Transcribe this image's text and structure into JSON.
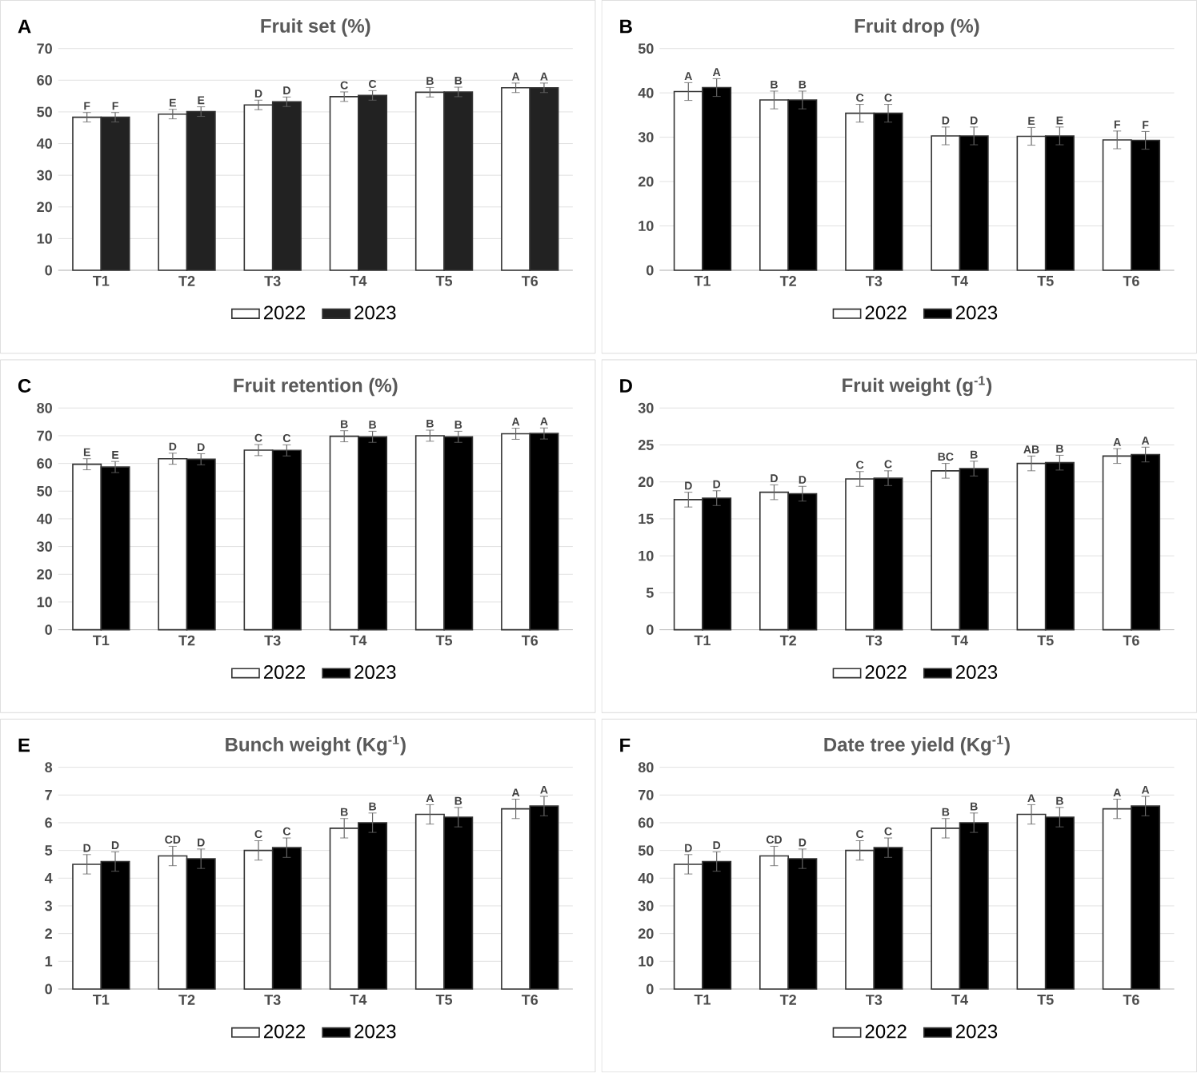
{
  "chart_data": [
    {
      "type": "bar",
      "title": "Fruit set (%)",
      "annotations": [
        "A"
      ],
      "categories": [
        "T1",
        "T2",
        "T3",
        "T4",
        "T5",
        "T6"
      ],
      "ylim": [
        0,
        70
      ],
      "yticks": [
        0,
        10,
        20,
        30,
        40,
        50,
        60,
        70
      ],
      "grid": "y",
      "legend": "bottom",
      "series": [
        {
          "name": "2022",
          "color": "#ffffff",
          "values": [
            48.3,
            49.3,
            52.2,
            54.8,
            56.2,
            57.6
          ],
          "errors": [
            1.5,
            1.5,
            1.5,
            1.5,
            1.5,
            1.5
          ],
          "value_labels": [
            "F",
            "E",
            "D",
            "C",
            "B",
            "A"
          ]
        },
        {
          "name": "2023",
          "color": "#222222",
          "values": [
            48.3,
            50.1,
            53.2,
            55.2,
            56.3,
            57.6
          ],
          "errors": [
            1.5,
            1.5,
            1.5,
            1.5,
            1.5,
            1.5
          ],
          "value_labels": [
            "F",
            "E",
            "D",
            "C",
            "B",
            "A"
          ]
        }
      ]
    },
    {
      "type": "bar",
      "title": "Fruit drop (%)",
      "annotations": [
        "B"
      ],
      "categories": [
        "T1",
        "T2",
        "T3",
        "T4",
        "T5",
        "T6"
      ],
      "ylim": [
        0,
        50
      ],
      "yticks": [
        0,
        10,
        20,
        30,
        40,
        50
      ],
      "grid": "y",
      "legend": "bottom",
      "series": [
        {
          "name": "2022",
          "color": "#ffffff",
          "values": [
            40.3,
            38.4,
            35.4,
            30.3,
            30.2,
            29.4
          ],
          "errors": [
            2,
            2,
            2,
            2,
            2,
            2
          ],
          "value_labels": [
            "A",
            "B",
            "C",
            "D",
            "E",
            "F"
          ]
        },
        {
          "name": "2023",
          "color": "#000000",
          "values": [
            41.2,
            38.4,
            35.4,
            30.3,
            30.3,
            29.3
          ],
          "errors": [
            2,
            2,
            2,
            2,
            2,
            2
          ],
          "value_labels": [
            "A",
            "B",
            "C",
            "D",
            "E",
            "F"
          ]
        }
      ]
    },
    {
      "type": "bar",
      "title": "Fruit retention (%)",
      "annotations": [
        "C"
      ],
      "categories": [
        "T1",
        "T2",
        "T3",
        "T4",
        "T5",
        "T6"
      ],
      "ylim": [
        0,
        80
      ],
      "yticks": [
        0,
        10,
        20,
        30,
        40,
        50,
        60,
        70,
        80
      ],
      "grid": "y",
      "legend": "bottom",
      "series": [
        {
          "name": "2022",
          "color": "#ffffff",
          "values": [
            59.7,
            61.7,
            64.8,
            69.8,
            70.0,
            70.7
          ],
          "errors": [
            2,
            2,
            2,
            2,
            2,
            2
          ],
          "value_labels": [
            "E",
            "D",
            "C",
            "B",
            "B",
            "A"
          ]
        },
        {
          "name": "2023",
          "color": "#000000",
          "values": [
            58.7,
            61.5,
            64.7,
            69.6,
            69.6,
            70.8
          ],
          "errors": [
            2,
            2,
            2,
            2,
            2,
            2
          ],
          "value_labels": [
            "E",
            "D",
            "C",
            "B",
            "B",
            "A"
          ]
        }
      ]
    },
    {
      "type": "bar",
      "title": "Fruit weight (g$^{-1}$)",
      "annotations": [
        "D"
      ],
      "categories": [
        "T1",
        "T2",
        "T3",
        "T4",
        "T5",
        "T6"
      ],
      "ylim": [
        0,
        30
      ],
      "yticks": [
        0,
        5,
        10,
        15,
        20,
        25,
        30
      ],
      "grid": "y",
      "legend": "bottom",
      "series": [
        {
          "name": "2022",
          "color": "#ffffff",
          "values": [
            17.6,
            18.6,
            20.4,
            21.5,
            22.5,
            23.5
          ],
          "errors": [
            1,
            1,
            1,
            1,
            1,
            1
          ],
          "value_labels": [
            "D",
            "D",
            "C",
            "BC",
            "AB",
            "A"
          ]
        },
        {
          "name": "2023",
          "color": "#000000",
          "values": [
            17.8,
            18.4,
            20.5,
            21.8,
            22.6,
            23.7
          ],
          "errors": [
            1,
            1,
            1,
            1,
            1,
            1
          ],
          "value_labels": [
            "D",
            "D",
            "C",
            "B",
            "B",
            "A"
          ]
        }
      ]
    },
    {
      "type": "bar",
      "title": "Bunch weight (Kg$^{-1}$)",
      "annotations": [
        "E"
      ],
      "categories": [
        "T1",
        "T2",
        "T3",
        "T4",
        "T5",
        "T6"
      ],
      "ylim": [
        0,
        8
      ],
      "yticks": [
        0,
        1,
        2,
        3,
        4,
        5,
        6,
        7,
        8
      ],
      "grid": "y",
      "legend": "bottom",
      "series": [
        {
          "name": "2022",
          "color": "#ffffff",
          "values": [
            4.5,
            4.8,
            5.0,
            5.8,
            6.3,
            6.5
          ],
          "errors": [
            0.35,
            0.35,
            0.35,
            0.35,
            0.35,
            0.35
          ],
          "value_labels": [
            "D",
            "CD",
            "C",
            "B",
            "A",
            "A"
          ]
        },
        {
          "name": "2023",
          "color": "#000000",
          "values": [
            4.6,
            4.7,
            5.1,
            6.0,
            6.2,
            6.6
          ],
          "errors": [
            0.35,
            0.35,
            0.35,
            0.35,
            0.35,
            0.35
          ],
          "value_labels": [
            "D",
            "D",
            "C",
            "B",
            "B",
            "A"
          ]
        }
      ]
    },
    {
      "type": "bar",
      "title": "Date tree yield (Kg$^{-1}$)",
      "annotations": [
        "F"
      ],
      "categories": [
        "T1",
        "T2",
        "T3",
        "T4",
        "T5",
        "T6"
      ],
      "ylim": [
        0,
        80
      ],
      "yticks": [
        0,
        10,
        20,
        30,
        40,
        50,
        60,
        70,
        80
      ],
      "grid": "y",
      "legend": "bottom",
      "series": [
        {
          "name": "2022",
          "color": "#ffffff",
          "values": [
            45,
            48,
            50,
            58,
            63,
            65
          ],
          "errors": [
            3.5,
            3.5,
            3.5,
            3.5,
            3.5,
            3.5
          ],
          "value_labels": [
            "D",
            "CD",
            "C",
            "B",
            "A",
            "A"
          ]
        },
        {
          "name": "2023",
          "color": "#000000",
          "values": [
            46,
            47,
            51,
            60,
            62,
            66
          ],
          "errors": [
            3.5,
            3.5,
            3.5,
            3.5,
            3.5,
            3.5
          ],
          "value_labels": [
            "D",
            "D",
            "C",
            "B",
            "B",
            "A"
          ]
        }
      ]
    }
  ]
}
